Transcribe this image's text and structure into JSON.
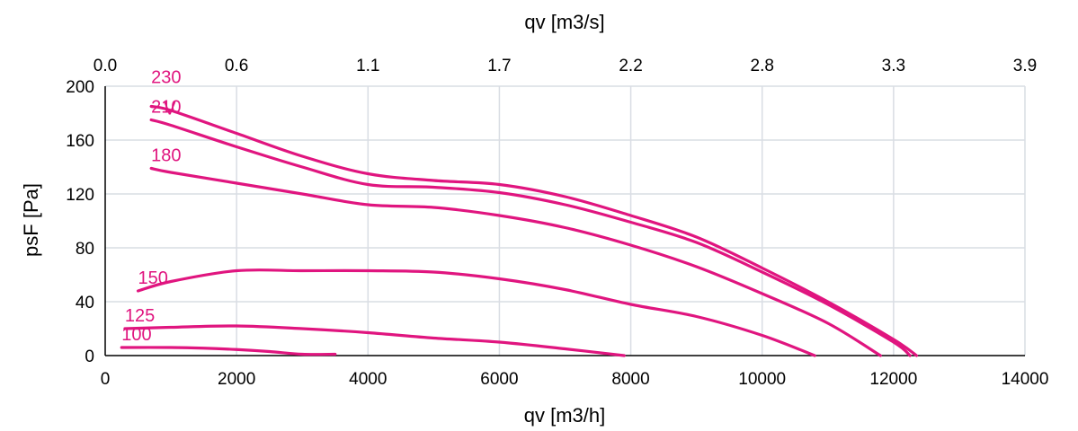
{
  "chart_data": {
    "type": "line",
    "xlabel": "qv [m3/h]",
    "ylabel": "psF [Pa]",
    "x2label": "qv [m3/s]",
    "xlim": [
      0,
      14000
    ],
    "ylim": [
      0,
      200
    ],
    "x_ticks": [
      0,
      2000,
      4000,
      6000,
      8000,
      10000,
      12000,
      14000
    ],
    "y_ticks": [
      0,
      40,
      80,
      120,
      160,
      200
    ],
    "x2_tick_labels": [
      "0.0",
      "0.6",
      "1.1",
      "1.7",
      "2.2",
      "2.8",
      "3.3",
      "3.9"
    ],
    "grid": true,
    "line_color": "#e0157f",
    "series": [
      {
        "name": "230",
        "extra_label": "V",
        "x": [
          700,
          1000,
          2000,
          3000,
          4000,
          5000,
          6000,
          7000,
          8000,
          9000,
          10000,
          11000,
          12000,
          12350
        ],
        "y": [
          185,
          182,
          165,
          148,
          135,
          130,
          127,
          118,
          104,
          88,
          65,
          40,
          12,
          0
        ]
      },
      {
        "name": "210",
        "x": [
          700,
          1000,
          2000,
          3000,
          4000,
          5000,
          6000,
          7000,
          8000,
          9000,
          10000,
          11000,
          12000,
          12250
        ],
        "y": [
          175,
          171,
          155,
          140,
          127,
          125,
          121,
          112,
          99,
          84,
          62,
          38,
          10,
          0
        ]
      },
      {
        "name": "180",
        "x": [
          700,
          1000,
          2000,
          3000,
          4000,
          5000,
          6000,
          7000,
          8000,
          9000,
          10000,
          11000,
          11800
        ],
        "y": [
          139,
          136,
          128,
          120,
          112,
          110,
          104,
          95,
          82,
          66,
          46,
          24,
          0
        ]
      },
      {
        "name": "150",
        "x": [
          500,
          1000,
          2000,
          3000,
          4000,
          5000,
          6000,
          7000,
          8000,
          9000,
          10000,
          10800
        ],
        "y": [
          48,
          55,
          63,
          63,
          63,
          62,
          57,
          49,
          38,
          29,
          15,
          0
        ]
      },
      {
        "name": "125",
        "x": [
          300,
          1000,
          2000,
          3000,
          4000,
          5000,
          6000,
          7000,
          7900
        ],
        "y": [
          20,
          21,
          22,
          20,
          17,
          13,
          10,
          5,
          0
        ]
      },
      {
        "name": "100",
        "x": [
          250,
          1000,
          1500,
          2000,
          2500,
          3000,
          3500
        ],
        "y": [
          6,
          6,
          5.5,
          4.5,
          3,
          1,
          1
        ]
      }
    ]
  }
}
